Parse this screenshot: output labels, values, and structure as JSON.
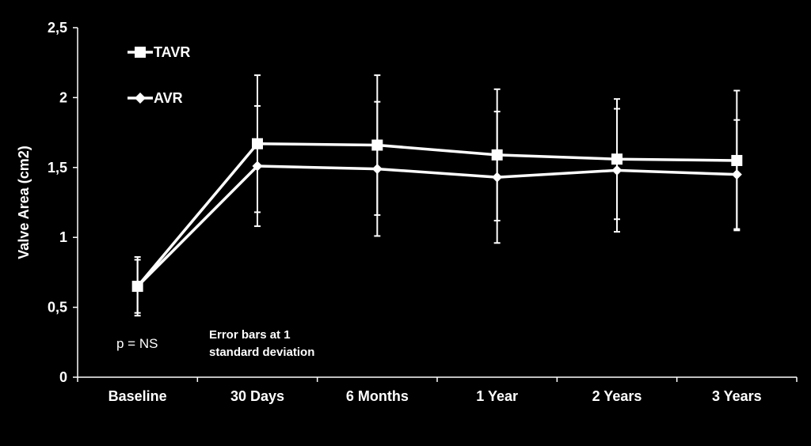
{
  "colors": {
    "background": "#000000",
    "foreground": "#ffffff"
  },
  "chart_data": {
    "type": "line",
    "title": "",
    "xlabel": "",
    "ylabel": "Valve Area (cm2)",
    "ylim": [
      0,
      2.5
    ],
    "y_ticks": [
      0,
      0.5,
      1,
      1.5,
      2,
      2.5
    ],
    "y_tick_labels": [
      "0",
      "0,5",
      "1",
      "1,5",
      "2",
      "2,5"
    ],
    "categories": [
      "Baseline",
      "30 Days",
      "6 Months",
      "1 Year",
      "2 Years",
      "3 Years"
    ],
    "grid": false,
    "legend_placement": "top-left",
    "series": [
      {
        "name": "TAVR",
        "marker": "square",
        "values": [
          0.65,
          1.67,
          1.66,
          1.59,
          1.56,
          1.55
        ],
        "error": [
          0.19,
          0.49,
          0.5,
          0.47,
          0.43,
          0.5
        ]
      },
      {
        "name": "AVR",
        "marker": "diamond",
        "values": [
          0.65,
          1.51,
          1.49,
          1.43,
          1.48,
          1.45
        ],
        "error": [
          0.21,
          0.43,
          0.48,
          0.47,
          0.44,
          0.39
        ]
      }
    ],
    "annotations": {
      "p_value": "p = NS",
      "error_note_line1": "Error bars at 1",
      "error_note_line2": "standard deviation"
    }
  }
}
